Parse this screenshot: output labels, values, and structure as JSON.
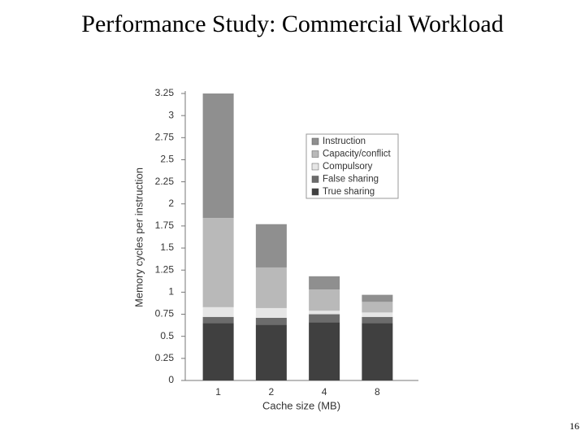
{
  "title": "Performance Study: Commercial Workload",
  "page_number": "16",
  "chart_data": {
    "type": "stacked_bar",
    "x_label": "Cache size (MB)",
    "y_label": "Memory cycles per instruction",
    "categories": [
      "1",
      "2",
      "4",
      "8"
    ],
    "series": [
      {
        "name": "True sharing",
        "color": "#404040",
        "values": [
          0.65,
          0.63,
          0.66,
          0.65
        ]
      },
      {
        "name": "False sharing",
        "color": "#6c6c6c",
        "values": [
          0.07,
          0.08,
          0.09,
          0.07
        ]
      },
      {
        "name": "Compulsory",
        "color": "#e6e6e6",
        "values": [
          0.11,
          0.11,
          0.04,
          0.05
        ]
      },
      {
        "name": "Capacity/conflict",
        "color": "#b9b9b9",
        "values": [
          1.01,
          0.46,
          0.24,
          0.12
        ]
      },
      {
        "name": "Instruction",
        "color": "#8f8f8f",
        "values": [
          1.41,
          0.49,
          0.15,
          0.08
        ]
      }
    ],
    "ylim": [
      0,
      3.25
    ],
    "yticks": [
      0,
      0.25,
      0.5,
      0.75,
      1,
      1.25,
      1.5,
      1.75,
      2,
      2.25,
      2.5,
      2.75,
      3,
      3.25
    ],
    "grid": false
  }
}
